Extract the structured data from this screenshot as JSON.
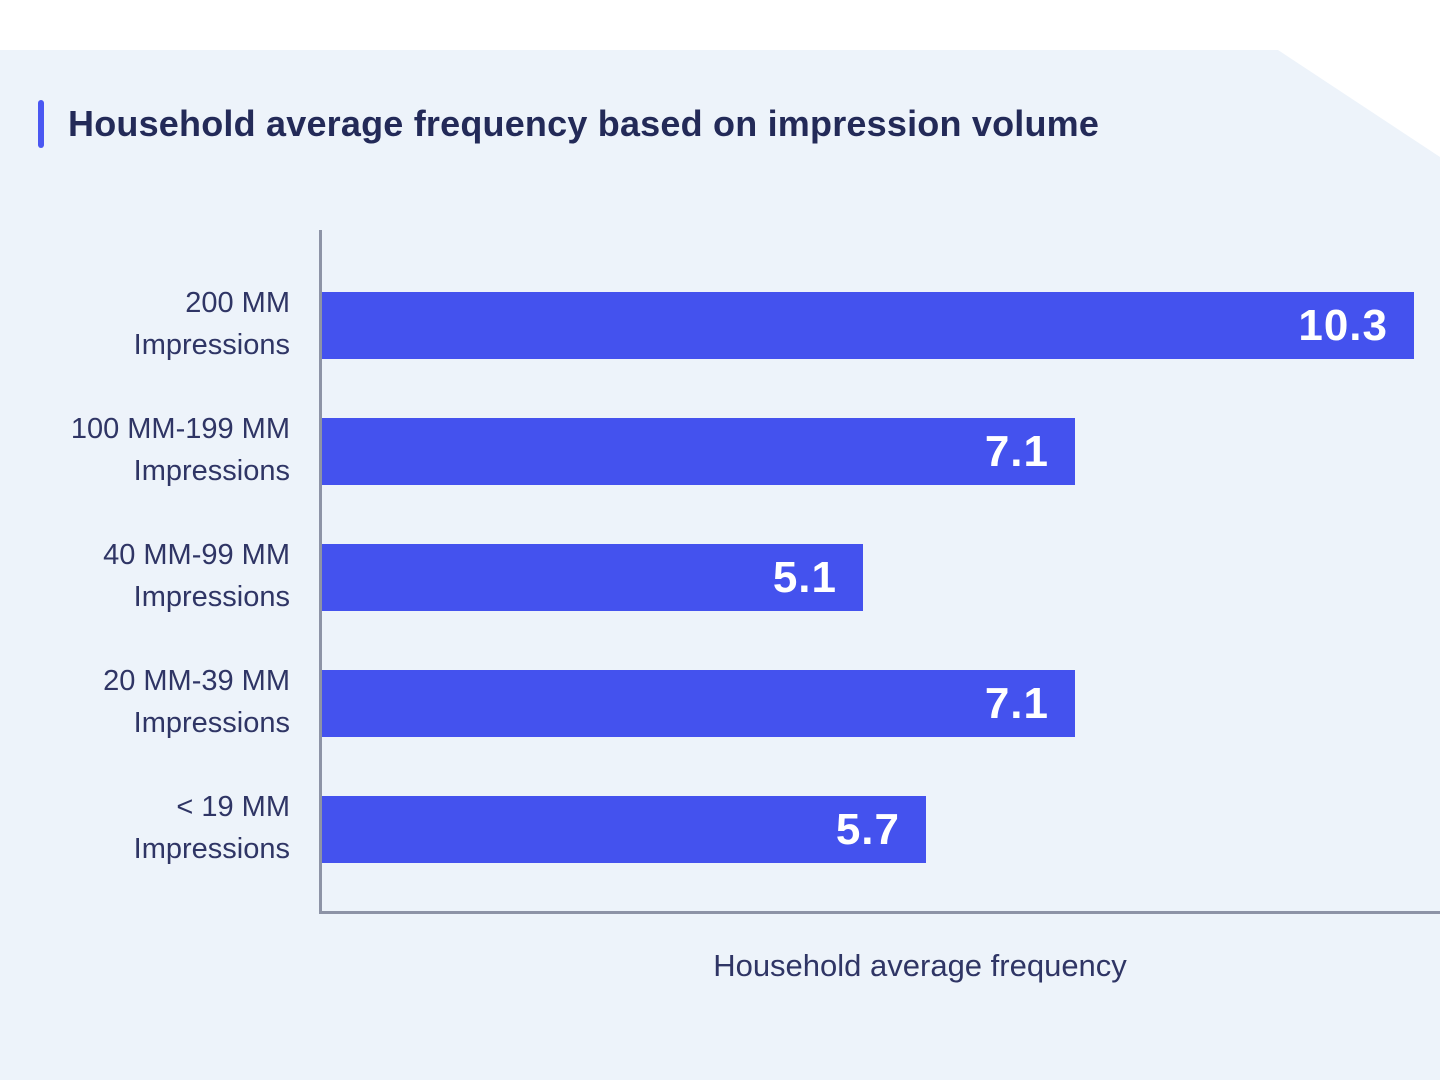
{
  "chart": {
    "title": "Household average frequency based on impression volume",
    "xlabel": "Household average frequency"
  },
  "chart_data": {
    "type": "bar",
    "orientation": "horizontal",
    "title": "Household average frequency based on impression volume",
    "categories": [
      "200 MM Impressions",
      "100 MM-199 MM Impressions",
      "40 MM-99 MM Impressions",
      "20 MM-39 MM Impressions",
      "< 19 MM Impressions"
    ],
    "category_lines": [
      [
        "200 MM",
        "Impressions"
      ],
      [
        "100 MM-199 MM",
        "Impressions"
      ],
      [
        "40 MM-99 MM",
        "Impressions"
      ],
      [
        "20 MM-39 MM",
        "Impressions"
      ],
      [
        "< 19 MM",
        "Impressions"
      ]
    ],
    "values": [
      10.3,
      7.1,
      5.1,
      7.1,
      5.7
    ],
    "value_labels": [
      "10.3",
      "7.1",
      "5.1",
      "7.1",
      "5.7"
    ],
    "xlabel": "Household average frequency",
    "xlim": [
      0,
      10.3
    ],
    "grid": false,
    "legend": "none",
    "bar_color": "#4452ee",
    "value_label_color": "#ffffff"
  },
  "colors": {
    "page_bg": "#ffffff",
    "panel_bg": "#edf3fa",
    "accent": "#4a57f2",
    "bar_color": "#4452ee",
    "title_text": "#232a58",
    "label_text": "#2f3565",
    "axis_line": "#8d93a6",
    "value_text": "#ffffff"
  }
}
